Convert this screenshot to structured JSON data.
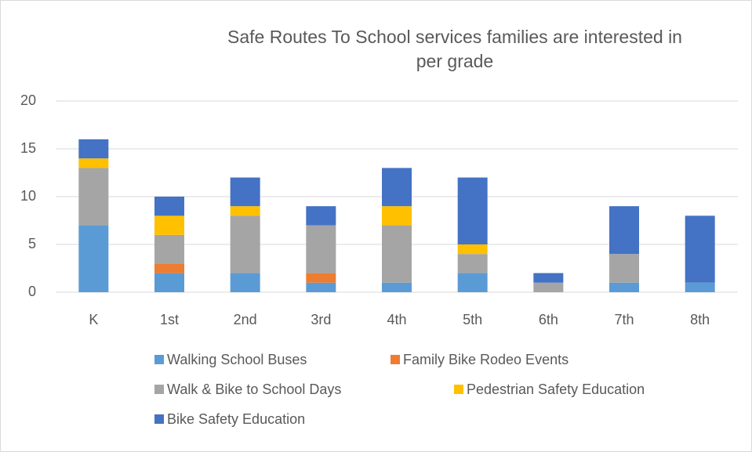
{
  "chart_data": {
    "type": "stacked_bar",
    "title": "Safe Routes To School services families are interested in per grade",
    "categories": [
      "K",
      "1st",
      "2nd",
      "3rd",
      "4th",
      "5th",
      "6th",
      "7th",
      "8th"
    ],
    "series": [
      {
        "name": "Walking School Buses",
        "color": "#5b9bd5",
        "values": [
          7,
          2,
          2,
          1,
          1,
          2,
          0,
          1,
          1
        ]
      },
      {
        "name": "Family Bike Rodeo Events",
        "color": "#ed7d31",
        "values": [
          0,
          1,
          0,
          1,
          0,
          0,
          0,
          0,
          0
        ]
      },
      {
        "name": "Walk & Bike to School Days",
        "color": "#a5a5a5",
        "values": [
          6,
          3,
          6,
          5,
          6,
          2,
          1,
          3,
          0
        ]
      },
      {
        "name": "Pedestrian Safety Education",
        "color": "#ffc000",
        "values": [
          1,
          2,
          1,
          0,
          2,
          1,
          0,
          0,
          0
        ]
      },
      {
        "name": "Bike Safety Education",
        "color": "#4472c4",
        "values": [
          2,
          2,
          3,
          2,
          4,
          7,
          1,
          5,
          7
        ]
      }
    ],
    "ylim": [
      0,
      20
    ],
    "yticks": [
      0,
      5,
      10,
      15,
      20
    ],
    "grid": true,
    "legend": "bottom"
  }
}
